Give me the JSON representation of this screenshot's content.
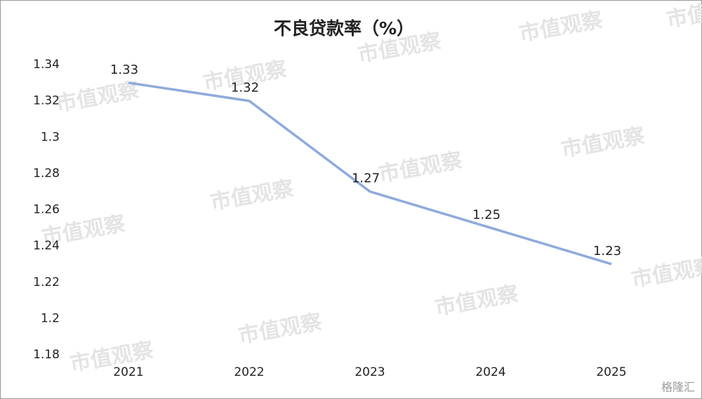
{
  "chart_data": {
    "type": "line",
    "title": "不良贷款率（%）",
    "categories": [
      "2021",
      "2022",
      "2023",
      "2024",
      "2025"
    ],
    "series": [
      {
        "name": "不良贷款率",
        "color": "#8eaadb",
        "values": [
          1.33,
          1.32,
          1.27,
          1.25,
          1.23
        ]
      }
    ],
    "ylim": [
      1.18,
      1.34
    ],
    "yticks": [
      1.18,
      1.2,
      1.22,
      1.24,
      1.26,
      1.28,
      1.3,
      1.32,
      1.34
    ],
    "grid": false,
    "data_labels": true
  },
  "watermark": "市值观察",
  "corner_mark": "格隆汇"
}
